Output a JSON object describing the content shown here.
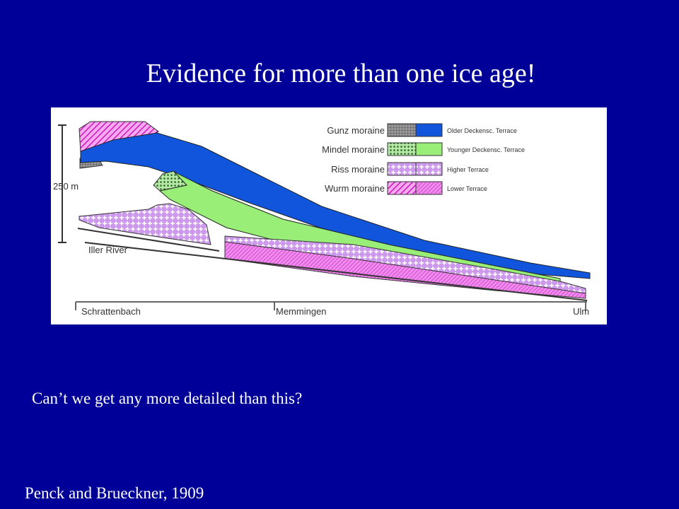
{
  "slide": {
    "title": "Evidence for more than one ice age!",
    "figure": {
      "scale_label": "250 m",
      "legend": [
        {
          "moraine": "Gunz moraine",
          "terrace": "Older Deckensc. Terrace"
        },
        {
          "moraine": "Mindel moraine",
          "terrace": "Younger Deckensc. Terrace"
        },
        {
          "moraine": "Riss moraine",
          "terrace": "Higher Terrace"
        },
        {
          "moraine": "Wurm moraine",
          "terrace": "Lower Terrace"
        }
      ],
      "river_label": "Iller River",
      "places": [
        "Schrattenbach",
        "Memmingen",
        "Ulm"
      ]
    },
    "question": "Can’t we get any more detailed than this?",
    "citation": "Penck and Brueckner, 1909"
  }
}
